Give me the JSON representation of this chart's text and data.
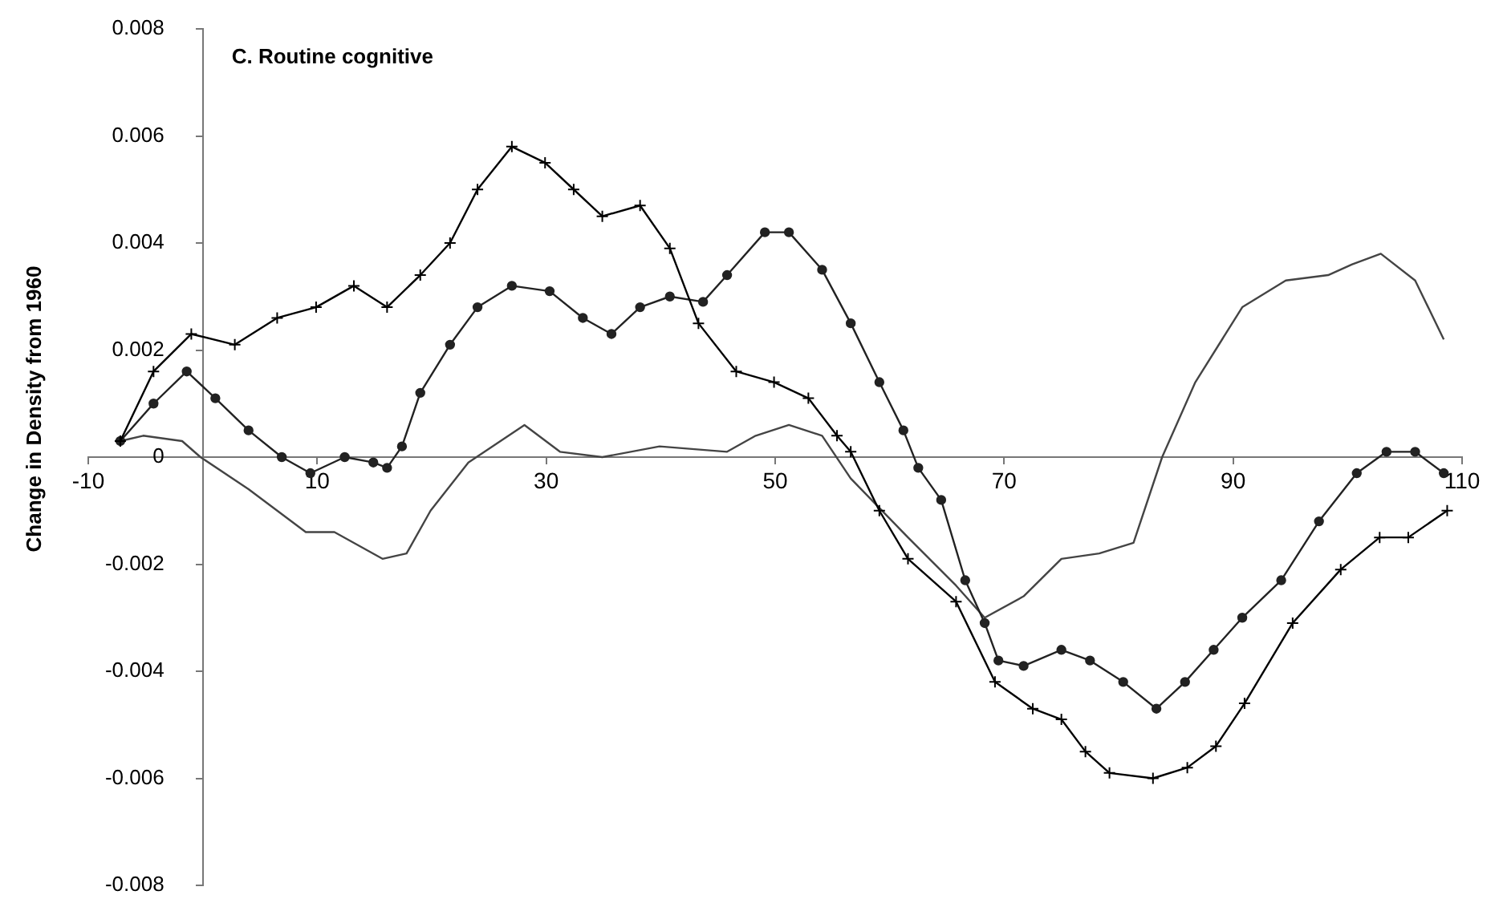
{
  "chart_data": {
    "type": "line",
    "title": "C. Routine cognitive",
    "ylabel": "Change in Density from 1960",
    "xlim": [
      -10,
      110
    ],
    "xticks": [
      -10,
      10,
      30,
      50,
      70,
      90,
      110
    ],
    "ylim": [
      -0.008,
      0.008
    ],
    "yticks": [
      -0.008,
      -0.006,
      -0.004,
      -0.002,
      0,
      0.002,
      0.004,
      0.006,
      0.008
    ],
    "grid": false,
    "legend": false,
    "line_style": "solid",
    "series": [
      {
        "color": "#000000",
        "marker": "cross",
        "x": [
          -7.2,
          -4.3,
          -1,
          2.8,
          6.5,
          9.9,
          13.2,
          16.1,
          19,
          21.6,
          24,
          27,
          29.9,
          32.4,
          34.9,
          38.2,
          40.8,
          43.3,
          46.6,
          49.9,
          52.9,
          55.4,
          56.6,
          59.1,
          61.6,
          65.8,
          69.2,
          72.5,
          75,
          77.1,
          79.2,
          83,
          86,
          88.5,
          91,
          95.2,
          99.4,
          102.8,
          105.3,
          108.7
        ],
        "values": [
          0.0003,
          0.0016,
          0.0023,
          0.0021,
          0.0026,
          0.0028,
          0.0032,
          0.0028,
          0.0034,
          0.004,
          0.005,
          0.0058,
          0.0055,
          0.005,
          0.0045,
          0.0047,
          0.0039,
          0.0025,
          0.0016,
          0.0014,
          0.0011,
          0.0004,
          0.0001,
          -0.001,
          -0.0019,
          -0.0027,
          -0.0042,
          -0.0047,
          -0.0049,
          -0.0055,
          -0.0059,
          -0.006,
          -0.0058,
          -0.0054,
          -0.0046,
          -0.0031,
          -0.0021,
          -0.0015,
          -0.0015,
          -0.001
        ]
      },
      {
        "color": "#222222",
        "marker": "circle",
        "x": [
          -7.2,
          -4.3,
          -1.4,
          1.1,
          4,
          6.9,
          9.4,
          12.4,
          14.9,
          16.1,
          17.4,
          19,
          21.6,
          24,
          27,
          30.3,
          33.2,
          35.7,
          38.2,
          40.8,
          43.7,
          45.8,
          49.1,
          51.2,
          54.1,
          56.6,
          59.1,
          61.2,
          62.5,
          64.5,
          66.6,
          68.3,
          69.5,
          71.7,
          75,
          77.5,
          80.4,
          83.3,
          85.8,
          88.3,
          90.8,
          94.2,
          97.5,
          100.8,
          103.4,
          105.9,
          108.4
        ],
        "values": [
          0.0003,
          0.001,
          0.0016,
          0.0011,
          0.0005,
          0,
          -0.0003,
          0,
          -0.0001,
          -0.0002,
          0.0002,
          0.0012,
          0.0021,
          0.0028,
          0.0032,
          0.0031,
          0.0026,
          0.0023,
          0.0028,
          0.003,
          0.0029,
          0.0034,
          0.0042,
          0.0042,
          0.0035,
          0.0025,
          0.0014,
          0.0005,
          -0.0002,
          -0.0008,
          -0.0023,
          -0.0031,
          -0.0038,
          -0.0039,
          -0.0036,
          -0.0038,
          -0.0042,
          -0.0047,
          -0.0042,
          -0.0036,
          -0.003,
          -0.0023,
          -0.0012,
          -0.0003,
          0.0001,
          0.0001,
          -0.0003
        ]
      },
      {
        "color": "#444444",
        "marker": "none",
        "x": [
          -7.2,
          -5.2,
          -1.8,
          -0.2,
          4,
          9,
          11.5,
          15.7,
          17.8,
          19.9,
          23.2,
          28.1,
          31.2,
          34.9,
          39.9,
          45.8,
          48.3,
          51.2,
          54.1,
          56.6,
          61.6,
          65.8,
          68.3,
          71.7,
          75,
          78.3,
          81.3,
          83.8,
          86.7,
          90.8,
          94.6,
          98.3,
          100.4,
          102.9,
          105.9,
          108.4
        ],
        "values": [
          0.0003,
          0.0004,
          0.0003,
          0,
          -0.0006,
          -0.0014,
          -0.0014,
          -0.0019,
          -0.0018,
          -0.001,
          -0.0001,
          0.0006,
          0.0001,
          0,
          0.0002,
          0.0001,
          0.0004,
          0.0006,
          0.0004,
          -0.0004,
          -0.0015,
          -0.0024,
          -0.003,
          -0.0026,
          -0.0019,
          -0.0018,
          -0.0016,
          0,
          0.0014,
          0.0028,
          0.0033,
          0.0034,
          0.0036,
          0.0038,
          0.0033,
          0.0022
        ]
      }
    ]
  }
}
